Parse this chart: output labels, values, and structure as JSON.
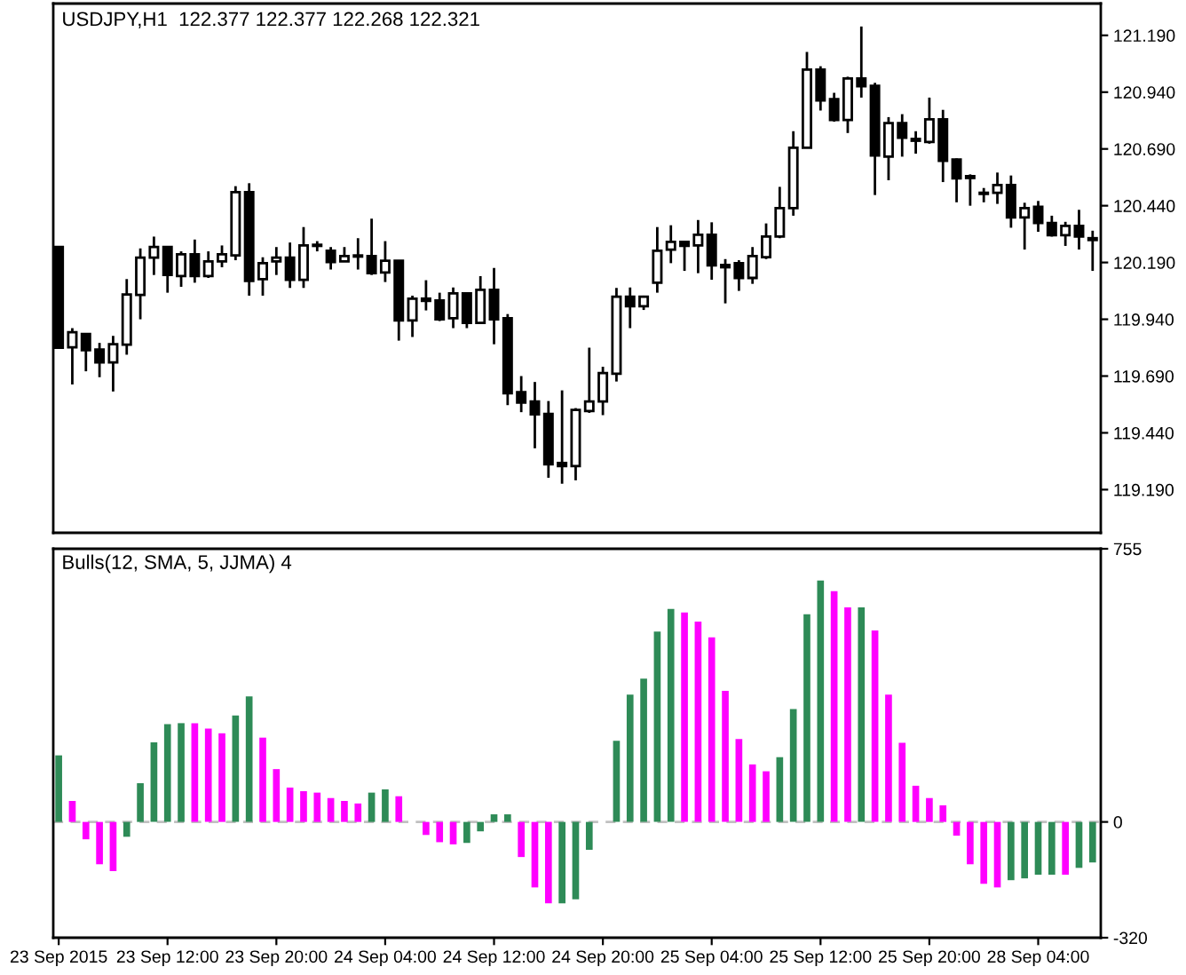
{
  "chart_data": [
    {
      "type": "candlestick",
      "title": "USDJPY,H1  122.377 122.377 122.268 122.321",
      "categories": [
        null,
        null,
        null,
        null,
        null,
        null,
        null,
        null,
        null,
        null,
        null,
        null,
        null,
        null,
        null,
        null,
        null,
        null,
        null,
        null,
        null,
        null,
        null,
        null,
        null,
        null,
        null,
        null,
        null,
        null,
        null,
        null,
        null,
        null,
        null,
        null,
        null,
        null,
        null,
        null,
        null,
        null,
        null,
        null,
        null,
        null,
        null,
        null,
        null,
        null,
        null,
        null,
        null,
        null,
        null,
        null,
        null,
        null,
        null,
        null,
        null,
        null,
        null,
        null,
        null,
        null,
        null,
        null,
        null,
        null,
        null,
        null,
        null,
        null,
        null,
        null,
        null
      ],
      "ohlc": [
        [
          120.258,
          120.258,
          119.815,
          119.815
        ],
        [
          119.817,
          119.901,
          119.653,
          119.883
        ],
        [
          119.875,
          119.875,
          119.711,
          119.804
        ],
        [
          119.807,
          119.836,
          119.685,
          119.75
        ],
        [
          119.75,
          119.867,
          119.622,
          119.83
        ],
        [
          119.828,
          120.117,
          119.784,
          120.049
        ],
        [
          120.047,
          120.252,
          119.94,
          120.211
        ],
        [
          120.211,
          120.304,
          120.135,
          120.258
        ],
        [
          120.258,
          120.258,
          120.057,
          120.135
        ],
        [
          120.13,
          120.239,
          120.083,
          120.226
        ],
        [
          120.226,
          120.291,
          120.101,
          120.13
        ],
        [
          120.13,
          120.239,
          120.122,
          120.195
        ],
        [
          120.195,
          120.265,
          120.169,
          120.226
        ],
        [
          120.221,
          120.526,
          120.2,
          120.5
        ],
        [
          120.5,
          120.539,
          120.044,
          120.109
        ],
        [
          120.117,
          120.213,
          120.044,
          120.187
        ],
        [
          120.195,
          120.258,
          120.135,
          120.211
        ],
        [
          120.211,
          120.278,
          120.078,
          120.114
        ],
        [
          120.114,
          120.346,
          120.078,
          120.265
        ],
        [
          120.268,
          120.284,
          120.239,
          120.263
        ],
        [
          120.242,
          120.258,
          120.159,
          120.192
        ],
        [
          120.195,
          120.258,
          120.195,
          120.218
        ],
        [
          120.221,
          120.297,
          120.159,
          120.216
        ],
        [
          120.218,
          120.383,
          120.135,
          120.143
        ],
        [
          120.146,
          120.284,
          120.104,
          120.198
        ],
        [
          120.198,
          120.198,
          119.846,
          119.935
        ],
        [
          119.935,
          120.044,
          119.862,
          120.031
        ],
        [
          120.031,
          120.112,
          119.979,
          120.021
        ],
        [
          120.023,
          120.057,
          119.932,
          119.94
        ],
        [
          119.945,
          120.08,
          119.901,
          120.054
        ],
        [
          120.054,
          120.054,
          119.901,
          119.924
        ],
        [
          119.924,
          120.13,
          119.919,
          120.07
        ],
        [
          120.07,
          120.166,
          119.83,
          119.94
        ],
        [
          119.945,
          119.963,
          119.562,
          119.614
        ],
        [
          119.619,
          119.69,
          119.531,
          119.573
        ],
        [
          119.578,
          119.664,
          119.372,
          119.521
        ],
        [
          119.523,
          119.58,
          119.242,
          119.302
        ],
        [
          119.307,
          119.627,
          119.216,
          119.294
        ],
        [
          119.294,
          119.549,
          119.231,
          119.541
        ],
        [
          119.536,
          119.815,
          119.528,
          119.578
        ],
        [
          119.578,
          119.731,
          119.518,
          119.703
        ],
        [
          119.7,
          120.078,
          119.666,
          120.039
        ],
        [
          120.039,
          120.08,
          119.901,
          119.997
        ],
        [
          119.997,
          120.044,
          119.981,
          120.039
        ],
        [
          120.101,
          120.346,
          120.057,
          120.242
        ],
        [
          120.247,
          120.354,
          120.187,
          120.281
        ],
        [
          120.281,
          120.281,
          120.153,
          120.263
        ],
        [
          120.265,
          120.377,
          120.143,
          120.312
        ],
        [
          120.312,
          120.367,
          120.114,
          120.177
        ],
        [
          120.179,
          120.205,
          120.01,
          120.169
        ],
        [
          120.187,
          120.2,
          120.065,
          120.122
        ],
        [
          120.122,
          120.258,
          120.096,
          120.218
        ],
        [
          120.213,
          120.362,
          120.205,
          120.304
        ],
        [
          120.304,
          120.523,
          120.297,
          120.429
        ],
        [
          120.429,
          120.768,
          120.396,
          120.695
        ],
        [
          120.695,
          121.117,
          120.695,
          121.039
        ],
        [
          121.039,
          121.054,
          120.859,
          120.903
        ],
        [
          120.909,
          120.937,
          120.81,
          120.817
        ],
        [
          120.817,
          121.008,
          120.76,
          121.0
        ],
        [
          121.0,
          121.229,
          120.916,
          120.966
        ],
        [
          120.968,
          120.981,
          120.487,
          120.661
        ],
        [
          120.656,
          120.83,
          120.552,
          120.804
        ],
        [
          120.804,
          120.843,
          120.656,
          120.739
        ],
        [
          120.734,
          120.768,
          120.669,
          120.726
        ],
        [
          120.721,
          120.916,
          120.713,
          120.82
        ],
        [
          120.82,
          120.862,
          120.544,
          120.638
        ],
        [
          120.643,
          120.648,
          120.455,
          120.56
        ],
        [
          120.57,
          120.578,
          120.44,
          120.562
        ],
        [
          120.492,
          120.518,
          120.455,
          120.497
        ],
        [
          120.497,
          120.586,
          120.448,
          120.531
        ],
        [
          120.531,
          120.573,
          120.343,
          120.388
        ],
        [
          120.388,
          120.453,
          120.247,
          120.429
        ],
        [
          120.435,
          120.461,
          120.325,
          120.364
        ],
        [
          120.364,
          120.396,
          120.304,
          120.31
        ],
        [
          120.31,
          120.369,
          120.263,
          120.351
        ],
        [
          120.351,
          120.422,
          120.247,
          120.304
        ],
        [
          120.297,
          120.33,
          120.153,
          120.289
        ]
      ],
      "ylim": [
        119.0,
        121.33
      ],
      "yticks": [
        {
          "value": 119.19,
          "label": "119.190"
        },
        {
          "value": 119.44,
          "label": "119.440"
        },
        {
          "value": 119.69,
          "label": "119.690"
        },
        {
          "value": 119.94,
          "label": "119.940"
        },
        {
          "value": 120.19,
          "label": "120.190"
        },
        {
          "value": 120.44,
          "label": "120.440"
        },
        {
          "value": 120.69,
          "label": "120.690"
        },
        {
          "value": 120.94,
          "label": "120.940"
        },
        {
          "value": 121.19,
          "label": "121.190"
        }
      ]
    },
    {
      "type": "bar",
      "title": "Bulls(12, SMA, 5, JJMA) 4",
      "categories": [
        "23 Sep 2015",
        null,
        null,
        null,
        null,
        null,
        null,
        null,
        "23 Sep 12:00",
        null,
        null,
        null,
        null,
        null,
        null,
        null,
        "23 Sep 20:00",
        null,
        null,
        null,
        null,
        null,
        null,
        null,
        "24 Sep 04:00",
        null,
        null,
        null,
        null,
        null,
        null,
        null,
        "24 Sep 12:00",
        null,
        null,
        null,
        null,
        null,
        null,
        null,
        "24 Sep 20:00",
        null,
        null,
        null,
        null,
        null,
        null,
        null,
        "25 Sep 04:00",
        null,
        null,
        null,
        null,
        null,
        null,
        null,
        "25 Sep 12:00",
        null,
        null,
        null,
        null,
        null,
        null,
        null,
        "25 Sep 20:00",
        null,
        null,
        null,
        null,
        null,
        null,
        null,
        "28 Sep 04:00",
        null,
        null,
        null,
        null
      ],
      "values": [
        184,
        58,
        -48,
        -117,
        -136,
        -41,
        107,
        220,
        270,
        273,
        273,
        258,
        245,
        294,
        347,
        233,
        146,
        95,
        85,
        81,
        66,
        58,
        51,
        81,
        90,
        71,
        null,
        -36,
        -56,
        -62,
        -58,
        -26,
        21,
        21,
        -97,
        -181,
        -225,
        -225,
        -214,
        -77,
        null,
        224,
        352,
        396,
        526,
        589,
        579,
        554,
        510,
        362,
        229,
        159,
        140,
        179,
        312,
        574,
        667,
        638,
        593,
        593,
        529,
        352,
        219,
        100,
        66,
        46,
        -38,
        -117,
        -171,
        -181,
        -161,
        -156,
        -146,
        -146,
        -146,
        -127,
        -112
      ],
      "colors": [
        "#2e8b57",
        "#ff00ff",
        "#ff00ff",
        "#ff00ff",
        "#ff00ff",
        "#2e8b57",
        "#2e8b57",
        "#2e8b57",
        "#2e8b57",
        "#2e8b57",
        "#ff00ff",
        "#ff00ff",
        "#ff00ff",
        "#2e8b57",
        "#2e8b57",
        "#ff00ff",
        "#ff00ff",
        "#ff00ff",
        "#ff00ff",
        "#ff00ff",
        "#ff00ff",
        "#ff00ff",
        "#ff00ff",
        "#2e8b57",
        "#2e8b57",
        "#ff00ff",
        "#2e8b57",
        "#ff00ff",
        "#ff00ff",
        "#ff00ff",
        "#2e8b57",
        "#2e8b57",
        "#2e8b57",
        "#2e8b57",
        "#ff00ff",
        "#ff00ff",
        "#ff00ff",
        "#2e8b57",
        "#2e8b57",
        "#2e8b57",
        "#2e8b57",
        "#2e8b57",
        "#2e8b57",
        "#2e8b57",
        "#2e8b57",
        "#2e8b57",
        "#ff00ff",
        "#ff00ff",
        "#ff00ff",
        "#ff00ff",
        "#ff00ff",
        "#ff00ff",
        "#ff00ff",
        "#2e8b57",
        "#2e8b57",
        "#2e8b57",
        "#2e8b57",
        "#ff00ff",
        "#ff00ff",
        "#2e8b57",
        "#ff00ff",
        "#ff00ff",
        "#ff00ff",
        "#ff00ff",
        "#ff00ff",
        "#ff00ff",
        "#ff00ff",
        "#ff00ff",
        "#ff00ff",
        "#ff00ff",
        "#2e8b57",
        "#2e8b57",
        "#2e8b57",
        "#2e8b57",
        "#ff00ff",
        "#2e8b57",
        "#2e8b57"
      ],
      "ylim": [
        -320,
        755
      ],
      "yticks": [
        -320,
        0,
        755
      ],
      "ref_lines": [
        {
          "axis": "y",
          "value": 0,
          "color": "#c0c0c0",
          "line_style": "dashed"
        }
      ]
    }
  ]
}
